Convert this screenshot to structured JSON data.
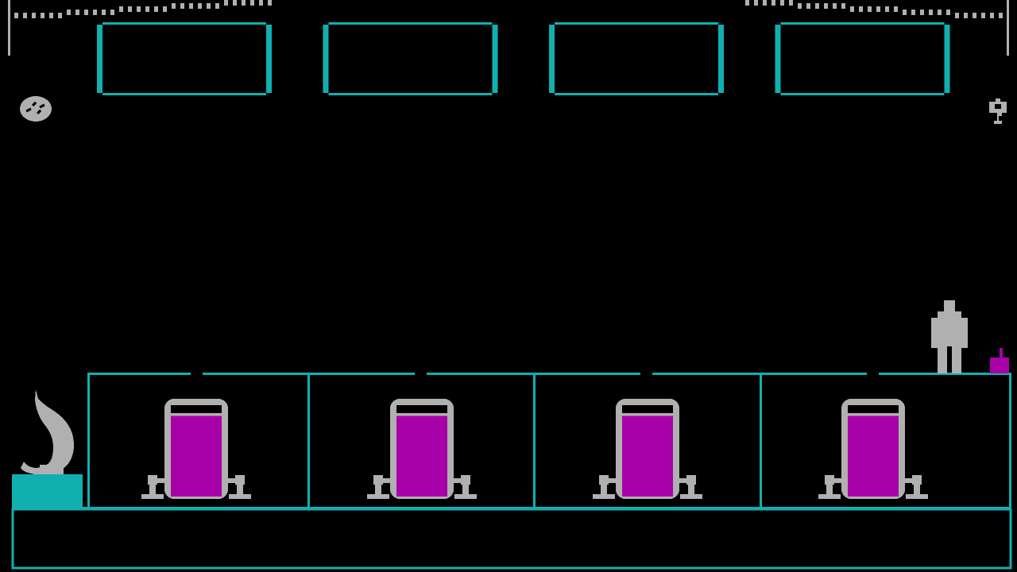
{
  "colors": {
    "background": "#000000",
    "cyan": "#10b0b0",
    "gray": "#b0b0b0",
    "magenta": "#a800a8"
  },
  "scene": {
    "windows_count": 4,
    "tanks_count": 4,
    "tank_fill_level": 0.95,
    "icons": {
      "top_left": "clock-icon",
      "top_right": "keyhole-icon",
      "player": "robot-figure",
      "item": "magenta-box-item",
      "left_prop": "flame-statue"
    }
  }
}
